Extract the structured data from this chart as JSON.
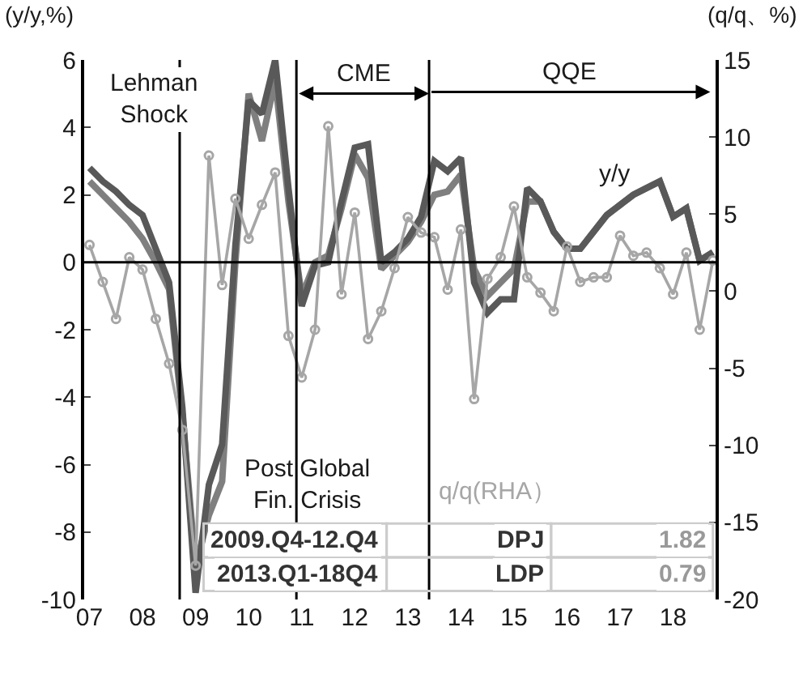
{
  "chart_data": {
    "type": "line",
    "ylabel": "(y/y,%)",
    "y2label": "(q/q、%)",
    "x": [
      2007.0,
      2007.25,
      2007.5,
      2007.75,
      2008.0,
      2008.25,
      2008.5,
      2008.75,
      2009.0,
      2009.25,
      2009.5,
      2009.75,
      2010.0,
      2010.25,
      2010.5,
      2010.75,
      2011.0,
      2011.25,
      2011.5,
      2011.75,
      2012.0,
      2012.25,
      2012.5,
      2012.75,
      2013.0,
      2013.25,
      2013.5,
      2013.75,
      2014.0,
      2014.25,
      2014.5,
      2014.75,
      2015.0,
      2015.25,
      2015.5,
      2015.75,
      2016.0,
      2016.25,
      2016.5,
      2016.75,
      2017.0,
      2017.25,
      2017.5,
      2017.75,
      2018.0,
      2018.25,
      2018.5,
      2018.75
    ],
    "series": [
      {
        "color": "#7f7f7f",
        "values": [
          2.4,
          2.0,
          1.6,
          1.2,
          0.7,
          0.0,
          -0.8,
          -4.5,
          -9.0,
          -7.5,
          -6.5,
          0.0,
          5.0,
          3.6,
          5.4,
          1.8,
          -1.0,
          0.0,
          0.2,
          1.6,
          3.2,
          2.5,
          -0.2,
          0.2,
          0.6,
          1.2,
          2.0,
          2.1,
          2.6,
          -0.2,
          -1.0,
          -0.6,
          -0.2,
          1.8,
          1.8,
          0.9,
          0.4,
          0.4,
          0.9,
          1.4,
          1.7,
          2.0,
          2.2,
          2.4,
          1.35,
          1.6,
          0.05,
          0.3
        ]
      },
      {
        "name": "y/y",
        "color": "#595959",
        "values": [
          2.8,
          2.4,
          2.1,
          1.7,
          1.4,
          0.4,
          -0.6,
          -4.3,
          -9.8,
          -6.6,
          -5.4,
          0.5,
          4.8,
          4.4,
          6.0,
          2.2,
          -1.3,
          -0.1,
          0.0,
          1.8,
          3.4,
          3.5,
          0.0,
          0.3,
          0.7,
          1.35,
          3.0,
          2.7,
          3.1,
          -0.6,
          -1.5,
          -1.1,
          -1.1,
          2.2,
          1.8,
          0.9,
          0.4,
          0.4,
          0.9,
          1.4,
          1.7,
          2.0,
          2.2,
          2.4,
          1.35,
          1.6,
          0.05,
          0.3
        ]
      },
      {
        "name": "q/q(RHA）",
        "color": "#a6a6a6",
        "axis": "y2",
        "marker": "circle",
        "values": [
          3.0,
          0.6,
          -1.8,
          2.2,
          1.4,
          -1.8,
          -4.7,
          -9.0,
          -17.8,
          8.8,
          0.4,
          6.0,
          3.4,
          5.6,
          7.7,
          -2.9,
          -5.6,
          -2.5,
          10.7,
          -0.2,
          5.1,
          -3.1,
          -1.3,
          1.5,
          4.8,
          3.8,
          3.5,
          0.1,
          4.0,
          -7.0,
          0.8,
          2.2,
          5.5,
          0.9,
          -0.1,
          -1.3,
          2.9,
          0.6,
          0.9,
          0.9,
          3.6,
          2.3,
          2.5,
          1.5,
          -0.2,
          2.5,
          -2.5,
          2.0
        ]
      }
    ],
    "xlim": [
      2006.9,
      2018.8
    ],
    "xticks": [
      {
        "value": 2007,
        "label": "07"
      },
      {
        "value": 2008,
        "label": "08"
      },
      {
        "value": 2009,
        "label": "09"
      },
      {
        "value": 2010,
        "label": "10"
      },
      {
        "value": 2011,
        "label": "11"
      },
      {
        "value": 2012,
        "label": "12"
      },
      {
        "value": 2013,
        "label": "13"
      },
      {
        "value": 2014,
        "label": "14"
      },
      {
        "value": 2015,
        "label": "15"
      },
      {
        "value": 2016,
        "label": "16"
      },
      {
        "value": 2017,
        "label": "17"
      },
      {
        "value": 2018,
        "label": "18"
      }
    ],
    "ylim": [
      -10,
      6
    ],
    "yticks": [
      -10,
      -8,
      -6,
      -4,
      -2,
      0,
      2,
      4,
      6
    ],
    "y2lim": [
      -20,
      15
    ],
    "y2ticks": [
      -20,
      -15,
      -10,
      -5,
      0,
      5,
      10,
      15
    ],
    "ref_lines": [
      {
        "axis": "y",
        "value": 0,
        "color": "#000000",
        "line_style": "solid"
      },
      {
        "axis": "x",
        "value": 2008.7,
        "color": "#000000",
        "line_style": "solid"
      },
      {
        "axis": "x",
        "value": 2010.9,
        "color": "#000000",
        "line_style": "solid"
      },
      {
        "axis": "x",
        "value": 2013.4,
        "color": "#000000",
        "line_style": "solid"
      }
    ],
    "annotations": [
      "Lehman\nShock",
      "CME",
      "QQE",
      "Post Global\nFin. Crisis",
      "2009.Q4-12.Q4",
      "DPJ",
      "1.82",
      "2013.Q1-18Q4",
      "LDP",
      "0.79"
    ],
    "legend": false,
    "line_style": "solid"
  }
}
